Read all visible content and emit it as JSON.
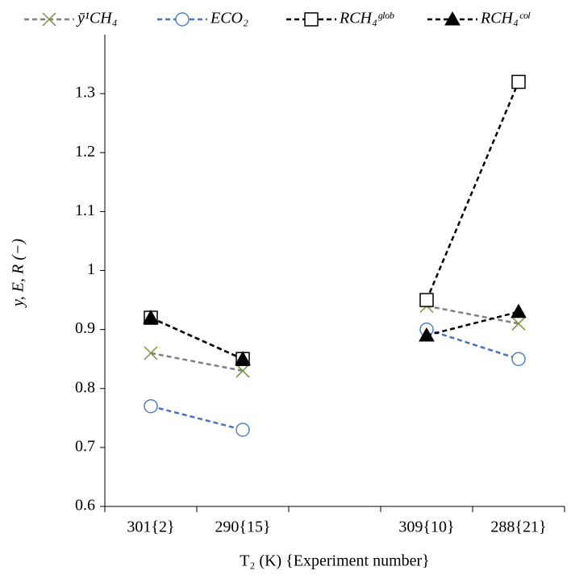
{
  "chart_data": {
    "type": "line",
    "categories": [
      "301{2}",
      "290{15}",
      null,
      "309{10}",
      "288{21}"
    ],
    "series": [
      {
        "name": "ȳ¹CH₄",
        "color": "#808080",
        "marker": "x",
        "marker_color": "#77933c",
        "marker_fill": "none",
        "values": [
          0.86,
          0.83,
          null,
          0.94,
          0.91
        ]
      },
      {
        "name": "ECO₂",
        "color": "#4472c4",
        "marker": "circle",
        "marker_color": "#4f81bd",
        "marker_fill": "none",
        "values": [
          0.77,
          0.73,
          null,
          0.9,
          0.85
        ]
      },
      {
        "name": "RCH₄ᵍˡᵒᵇ",
        "color": "#000000",
        "marker": "square",
        "marker_color": "#000000",
        "marker_fill": "none",
        "values": [
          0.92,
          0.85,
          null,
          0.95,
          1.32
        ]
      },
      {
        "name": "RCH₄ᶜᵒˡ",
        "color": "#000000",
        "marker": "triangle",
        "marker_color": "#000000",
        "marker_fill": "#000000",
        "values": [
          0.92,
          0.85,
          null,
          0.89,
          0.93
        ]
      }
    ],
    "y_label": "y, E, R (−)",
    "x_label": "T₂ (K) {Experiment number}",
    "ylim": [
      0.6,
      1.4
    ],
    "yticks": [
      0.6,
      0.7,
      0.8,
      0.9,
      1,
      1.1,
      1.2,
      1.3
    ],
    "legend": "top",
    "grid": false
  }
}
